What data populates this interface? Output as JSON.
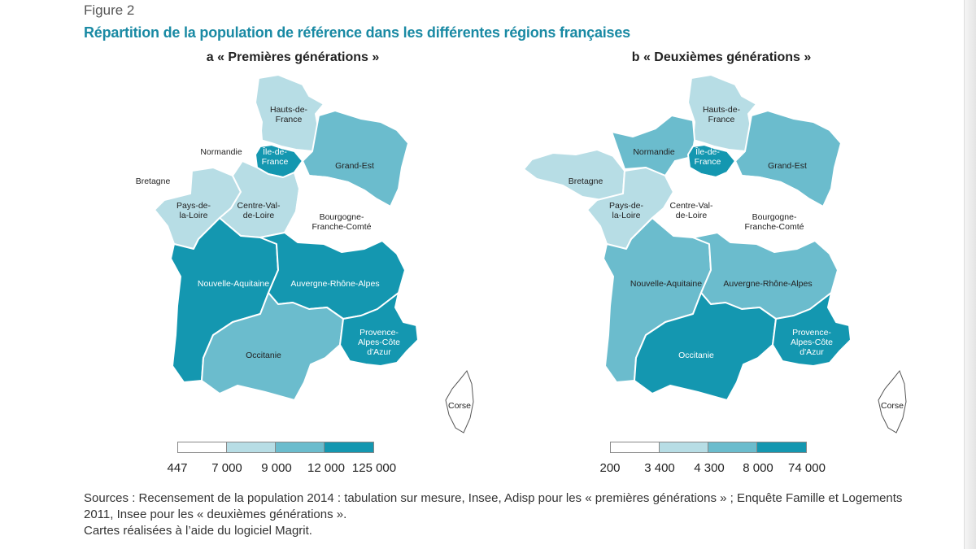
{
  "figure": {
    "label": "Figure 2",
    "title": "Répartition de la population de référence dans les différentes régions françaises"
  },
  "colors": {
    "class1": "#ffffff",
    "class2": "#b7dde5",
    "class3": "#6bbccd",
    "class4": "#1497b0"
  },
  "maps": [
    {
      "title": "a « Premières générations »",
      "legend_ticks": [
        "447",
        "7 000",
        "9 000",
        "12 000",
        "125 000"
      ],
      "regions": {
        "hauts_de_france": {
          "label": [
            "Hauts-de-",
            "France"
          ],
          "class": 2
        },
        "normandie": {
          "label": [
            "Normandie"
          ],
          "class": 1
        },
        "ile_de_france": {
          "label": [
            "Île-de-",
            "France"
          ],
          "class": 4
        },
        "grand_est": {
          "label": [
            "Grand-Est"
          ],
          "class": 3
        },
        "bretagne": {
          "label": [
            "Bretagne"
          ],
          "class": 1
        },
        "pays_de_la_loire": {
          "label": [
            "Pays-de-",
            "la-Loire"
          ],
          "class": 2
        },
        "centre_val_de_loire": {
          "label": [
            "Centre-Val-",
            "de-Loire"
          ],
          "class": 2
        },
        "bourgogne_franche_comte": {
          "label": [
            "Bourgogne-",
            "Franche-Comté"
          ],
          "class": 1
        },
        "nouvelle_aquitaine": {
          "label": [
            "Nouvelle-Aquitaine"
          ],
          "class": 4
        },
        "auvergne_rhone_alpes": {
          "label": [
            "Auvergne-Rhône-Alpes"
          ],
          "class": 4
        },
        "occitanie": {
          "label": [
            "Occitanie"
          ],
          "class": 3
        },
        "paca": {
          "label": [
            "Provence-",
            "Alpes-Côte",
            "d'Azur"
          ],
          "class": 4
        },
        "corse": {
          "label": [
            "Corse"
          ],
          "class": 1
        }
      }
    },
    {
      "title": "b « Deuxièmes générations »",
      "legend_ticks": [
        "200",
        "3 400",
        "4 300",
        "8 000",
        "74 000"
      ],
      "regions": {
        "hauts_de_france": {
          "label": [
            "Hauts-de-",
            "France"
          ],
          "class": 2
        },
        "normandie": {
          "label": [
            "Normandie"
          ],
          "class": 3
        },
        "ile_de_france": {
          "label": [
            "Île-de-",
            "France"
          ],
          "class": 4
        },
        "grand_est": {
          "label": [
            "Grand-Est"
          ],
          "class": 3
        },
        "bretagne": {
          "label": [
            "Bretagne"
          ],
          "class": 2
        },
        "pays_de_la_loire": {
          "label": [
            "Pays-de-",
            "la-Loire"
          ],
          "class": 2
        },
        "centre_val_de_loire": {
          "label": [
            "Centre-Val-",
            "de-Loire"
          ],
          "class": 1
        },
        "bourgogne_franche_comte": {
          "label": [
            "Bourgogne-",
            "Franche-Comté"
          ],
          "class": 1
        },
        "nouvelle_aquitaine": {
          "label": [
            "Nouvelle-Aquitaine"
          ],
          "class": 3
        },
        "auvergne_rhone_alpes": {
          "label": [
            "Auvergne-Rhône-Alpes"
          ],
          "class": 3
        },
        "occitanie": {
          "label": [
            "Occitanie"
          ],
          "class": 4
        },
        "paca": {
          "label": [
            "Provence-",
            "Alpes-Côte",
            "d'Azur"
          ],
          "class": 4
        },
        "corse": {
          "label": [
            "Corse"
          ],
          "class": 1
        }
      }
    }
  ],
  "sources": {
    "line1": "Sources : Recensement de la population 2014 : tabulation sur mesure, Insee, Adisp pour les « premières générations » ; Enquête Famille et Logements",
    "line2": "2011, Insee pour les « deuxièmes générations ».",
    "line3": "Cartes réalisées à l’aide du logiciel Magrit."
  }
}
